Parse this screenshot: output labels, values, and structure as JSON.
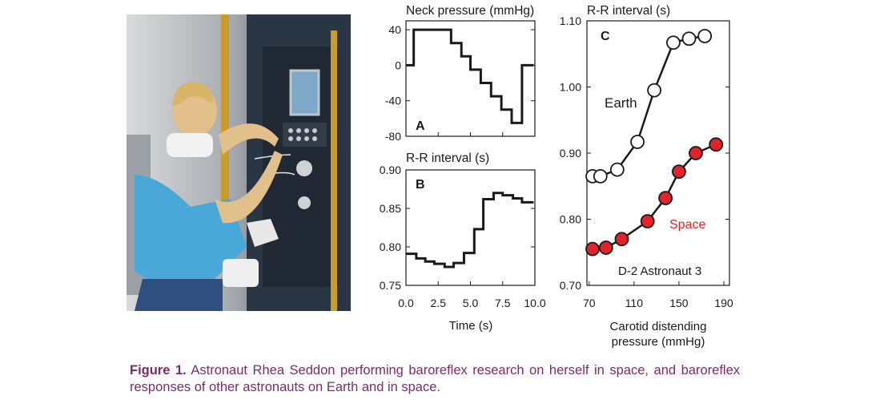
{
  "caption": {
    "label": "Figure 1.",
    "text": "Astronaut Rhea Seddon performing baroreflex research on herself in space, and baroreflex responses of other astronauts on Earth and in space."
  },
  "colors": {
    "space": "#e0242a",
    "earth": "#ffffff",
    "line": "#1a1a1a",
    "caption": "#7b2a6b"
  },
  "chart_data": [
    {
      "panel": "A",
      "type": "line",
      "title": "Neck pressure (mmHg)",
      "xlabel": "",
      "xlim": [
        0,
        10
      ],
      "ylim": [
        -80,
        50
      ],
      "yticks": [
        40,
        0,
        -40,
        -80
      ],
      "series": [
        {
          "x": [
            0,
            0.6,
            0.6,
            3.5,
            3.5,
            4.3,
            4.3,
            5.0,
            5.0,
            5.8,
            5.8,
            6.6,
            6.6,
            7.4,
            7.4,
            8.2,
            8.2,
            9.0,
            9.0,
            9.9
          ],
          "y": [
            0,
            0,
            40,
            40,
            25,
            25,
            10,
            10,
            -5,
            -5,
            -20,
            -20,
            -35,
            -35,
            -50,
            -50,
            -65,
            -65,
            0,
            0
          ]
        }
      ]
    },
    {
      "panel": "B",
      "type": "line",
      "title": "R-R interval (s)",
      "xlabel": "Time (s)",
      "xlim": [
        0,
        10
      ],
      "ylim": [
        0.75,
        0.9
      ],
      "xticks": [
        "0.0",
        "2.5",
        "5.0",
        "7.5",
        "10.0"
      ],
      "yticks": [
        "0.90",
        "0.85",
        "0.80",
        "0.75"
      ],
      "series": [
        {
          "x": [
            0,
            0.8,
            0.8,
            1.5,
            1.5,
            2.2,
            2.2,
            3.0,
            3.0,
            3.7,
            3.7,
            4.5,
            4.5,
            5.3,
            5.3,
            6.0,
            6.0,
            6.8,
            6.8,
            7.5,
            7.5,
            8.3,
            8.3,
            9.0,
            9.0,
            9.9
          ],
          "y": [
            0.791,
            0.791,
            0.785,
            0.785,
            0.781,
            0.781,
            0.778,
            0.778,
            0.774,
            0.774,
            0.779,
            0.779,
            0.792,
            0.792,
            0.823,
            0.823,
            0.862,
            0.862,
            0.87,
            0.87,
            0.867,
            0.867,
            0.863,
            0.863,
            0.858,
            0.858
          ]
        }
      ]
    },
    {
      "panel": "C",
      "type": "scatter",
      "title": "R-R interval (s)",
      "xlabel": "Carotid distending pressure (mmHg)",
      "xlim": [
        68,
        195
      ],
      "ylim": [
        0.7,
        1.1
      ],
      "xticks": [
        70,
        110,
        150,
        190
      ],
      "ytick_labels": [
        "1.10",
        "1.00",
        "0.90",
        "0.80",
        "0.70"
      ],
      "annotation": "D-2 Astronaut 3",
      "series": [
        {
          "name": "Earth",
          "color": "#ffffff",
          "x": [
            73,
            80,
            95,
            113,
            128,
            145,
            159,
            173
          ],
          "y": [
            0.865,
            0.865,
            0.875,
            0.917,
            0.995,
            1.067,
            1.073,
            1.077
          ]
        },
        {
          "name": "Space",
          "color": "#e0242a",
          "x": [
            73,
            85,
            99,
            122,
            138,
            150,
            165,
            183
          ],
          "y": [
            0.755,
            0.757,
            0.77,
            0.797,
            0.832,
            0.872,
            0.9,
            0.913
          ]
        }
      ]
    }
  ]
}
